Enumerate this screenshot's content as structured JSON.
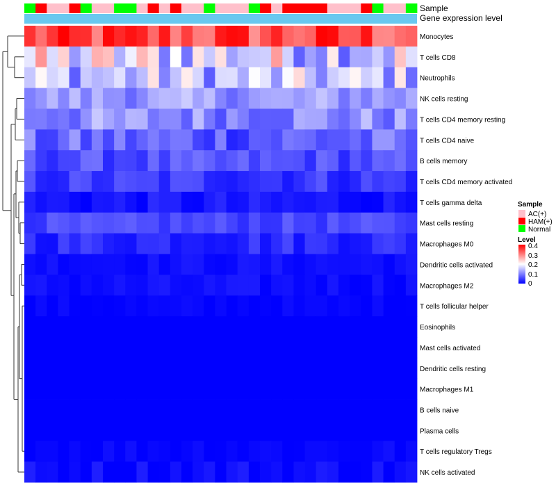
{
  "chart_data": {
    "type": "heatmap",
    "annotation_tracks": [
      {
        "name": "Sample",
        "values": [
          "Normal",
          "HAM(+)",
          "AC(+)",
          "AC(+)",
          "HAM(+)",
          "Normal",
          "AC(+)",
          "AC(+)",
          "Normal",
          "Normal",
          "AC(+)",
          "HAM(+)",
          "AC(+)",
          "HAM(+)",
          "AC(+)",
          "AC(+)",
          "Normal",
          "AC(+)",
          "AC(+)",
          "AC(+)",
          "Normal",
          "HAM(+)",
          "AC(+)",
          "HAM(+)",
          "HAM(+)",
          "HAM(+)",
          "HAM(+)",
          "AC(+)",
          "AC(+)",
          "AC(+)",
          "HAM(+)",
          "Normal",
          "AC(+)",
          "AC(+)",
          "Normal"
        ]
      },
      {
        "name": "Gene expression level",
        "color": "#69C8EF"
      }
    ],
    "rows": [
      "Monocytes",
      "T cells CD8",
      "Neutrophils",
      "NK cells resting",
      "T cells CD4 memory resting",
      "T cells CD4 naive",
      "B cells memory",
      "T cells CD4 memory activated",
      "T cells gamma delta",
      "Mast cells resting",
      "Macrophages M0",
      "Dendritic cells activated",
      "Macrophages M2",
      "T cells follicular helper",
      "Eosinophils",
      "Mast cells activated",
      "Dendritic cells resting",
      "Macrophages M1",
      "B cells naive",
      "Plasma cells",
      "T cells regulatory  Tregs",
      "NK cells activated"
    ],
    "row_base": [
      0.34,
      0.18,
      0.15,
      0.12,
      0.11,
      0.075,
      0.06,
      0.045,
      0.015,
      0.055,
      0.035,
      0.012,
      0.01,
      0.003,
      0.0,
      0.0,
      0.0,
      0.0,
      0.0,
      0.0,
      0.006,
      0.008
    ],
    "row_spread": [
      0.07,
      0.11,
      0.08,
      0.04,
      0.05,
      0.05,
      0.03,
      0.03,
      0.02,
      0.02,
      0.025,
      0.01,
      0.012,
      0.008,
      0.0,
      0.0,
      0.0,
      0.0,
      0.0,
      0.0,
      0.01,
      0.02
    ],
    "value_range": [
      0,
      0.4
    ],
    "legend": {
      "sample": {
        "title": "Sample",
        "entries": [
          {
            "label": "AC(+)",
            "color": "#FFC0CB"
          },
          {
            "label": "HAM(+)",
            "color": "#FF0000"
          },
          {
            "label": "Normal",
            "color": "#00FF00"
          }
        ]
      },
      "level": {
        "title": "Level",
        "ticks": [
          "0.4",
          "0.3",
          "0.2",
          "0.1",
          "0"
        ],
        "colors": {
          "low": "#0000FF",
          "mid": "#FFFFFF",
          "high": "#FF0000"
        }
      }
    }
  }
}
